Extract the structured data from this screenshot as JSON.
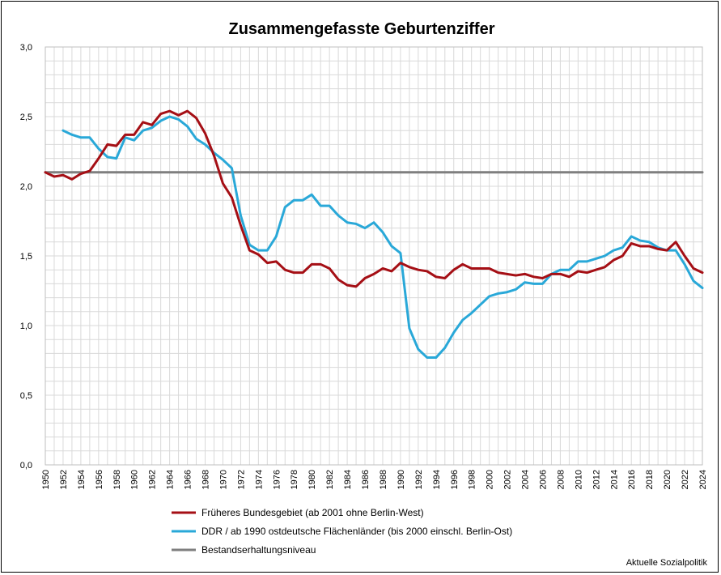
{
  "chart_data": {
    "type": "line",
    "title": "Zusammengefasste Geburtenziffer",
    "xlabel": "",
    "ylabel": "",
    "ylim": [
      0,
      3
    ],
    "xlim": [
      1950,
      2024
    ],
    "yticks": [
      "0,0",
      "0,5",
      "1,0",
      "1,5",
      "2,0",
      "2,5",
      "3,0"
    ],
    "ytick_values": [
      0,
      0.5,
      1.0,
      1.5,
      2.0,
      2.5,
      3.0
    ],
    "xticks": [
      "1950",
      "1952",
      "1954",
      "1956",
      "1958",
      "1960",
      "1962",
      "1964",
      "1966",
      "1968",
      "1970",
      "1972",
      "1974",
      "1976",
      "1978",
      "1980",
      "1982",
      "1984",
      "1986",
      "1988",
      "1990",
      "1992",
      "1994",
      "1996",
      "1998",
      "2000",
      "2002",
      "2004",
      "2006",
      "2008",
      "2010",
      "2012",
      "2014",
      "2016",
      "2018",
      "2020",
      "2022",
      "2024"
    ],
    "grid": true,
    "legend_position": "bottom-left",
    "series": [
      {
        "name": "Früheres Bundesgebiet (ab 2001 ohne Berlin-West)",
        "color": "#a50f15",
        "x": [
          1950,
          1951,
          1952,
          1953,
          1954,
          1955,
          1956,
          1957,
          1958,
          1959,
          1960,
          1961,
          1962,
          1963,
          1964,
          1965,
          1966,
          1967,
          1968,
          1969,
          1970,
          1971,
          1972,
          1973,
          1974,
          1975,
          1976,
          1977,
          1978,
          1979,
          1980,
          1981,
          1982,
          1983,
          1984,
          1985,
          1986,
          1987,
          1988,
          1989,
          1990,
          1991,
          1992,
          1993,
          1994,
          1995,
          1996,
          1997,
          1998,
          1999,
          2000,
          2001,
          2002,
          2003,
          2004,
          2005,
          2006,
          2007,
          2008,
          2009,
          2010,
          2011,
          2012,
          2013,
          2014,
          2015,
          2016,
          2017,
          2018,
          2019,
          2020,
          2021,
          2022,
          2023,
          2024
        ],
        "values": [
          2.1,
          2.07,
          2.08,
          2.05,
          2.09,
          2.11,
          2.2,
          2.3,
          2.29,
          2.37,
          2.37,
          2.46,
          2.44,
          2.52,
          2.54,
          2.51,
          2.54,
          2.49,
          2.38,
          2.22,
          2.02,
          1.92,
          1.72,
          1.54,
          1.51,
          1.45,
          1.46,
          1.4,
          1.38,
          1.38,
          1.44,
          1.44,
          1.41,
          1.33,
          1.29,
          1.28,
          1.34,
          1.37,
          1.41,
          1.39,
          1.45,
          1.42,
          1.4,
          1.39,
          1.35,
          1.34,
          1.4,
          1.44,
          1.41,
          1.41,
          1.41,
          1.38,
          1.37,
          1.36,
          1.37,
          1.35,
          1.34,
          1.37,
          1.37,
          1.35,
          1.39,
          1.38,
          1.4,
          1.42,
          1.47,
          1.5,
          1.59,
          1.57,
          1.57,
          1.55,
          1.54,
          1.6,
          1.5,
          1.41,
          1.38
        ]
      },
      {
        "name": "DDR / ab 1990 ostdeutsche Flächenländer (bis 2000 einschl. Berlin-Ost)",
        "color": "#29a8d8",
        "x": [
          1952,
          1953,
          1954,
          1955,
          1956,
          1957,
          1958,
          1959,
          1960,
          1961,
          1962,
          1963,
          1964,
          1965,
          1966,
          1967,
          1968,
          1969,
          1970,
          1971,
          1972,
          1973,
          1974,
          1975,
          1976,
          1977,
          1978,
          1979,
          1980,
          1981,
          1982,
          1983,
          1984,
          1985,
          1986,
          1987,
          1988,
          1989,
          1990,
          1991,
          1992,
          1993,
          1994,
          1995,
          1996,
          1997,
          1998,
          1999,
          2000,
          2001,
          2002,
          2003,
          2004,
          2005,
          2006,
          2007,
          2008,
          2009,
          2010,
          2011,
          2012,
          2013,
          2014,
          2015,
          2016,
          2017,
          2018,
          2019,
          2020,
          2021,
          2022,
          2023,
          2024
        ],
        "values": [
          2.4,
          2.37,
          2.35,
          2.35,
          2.27,
          2.21,
          2.2,
          2.35,
          2.33,
          2.4,
          2.42,
          2.47,
          2.5,
          2.48,
          2.43,
          2.34,
          2.3,
          2.24,
          2.19,
          2.13,
          1.79,
          1.58,
          1.54,
          1.54,
          1.64,
          1.85,
          1.9,
          1.9,
          1.94,
          1.86,
          1.86,
          1.79,
          1.74,
          1.73,
          1.7,
          1.74,
          1.67,
          1.57,
          1.52,
          0.98,
          0.83,
          0.77,
          0.77,
          0.84,
          0.95,
          1.04,
          1.09,
          1.15,
          1.21,
          1.23,
          1.24,
          1.26,
          1.31,
          1.3,
          1.3,
          1.37,
          1.4,
          1.4,
          1.46,
          1.46,
          1.48,
          1.5,
          1.54,
          1.56,
          1.64,
          1.61,
          1.6,
          1.56,
          1.54,
          1.54,
          1.44,
          1.32,
          1.27
        ]
      },
      {
        "name": "Bestandserhaltungsniveau",
        "color": "#7f7f7f",
        "x": [
          1950,
          2024
        ],
        "values": [
          2.1,
          2.1
        ]
      }
    ]
  },
  "source": "Aktuelle Sozialpolitik"
}
